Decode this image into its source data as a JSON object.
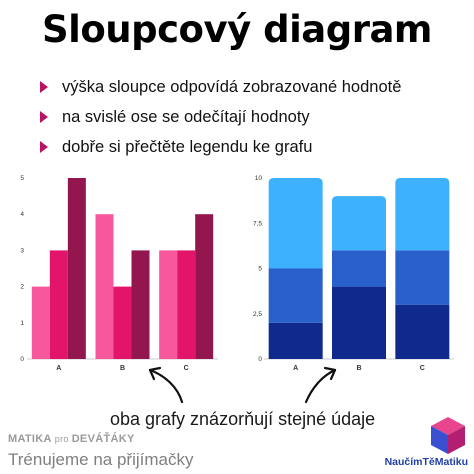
{
  "title": "Sloupcový diagram",
  "bullets": [
    "výška sloupce odpovídá zobrazované hodnotě",
    "na svislé ose se odečítají hodnoty",
    "dobře si přečtěte legendu ke grafu"
  ],
  "caption": "oba grafy znázorňují stejné údaje",
  "brand": {
    "left_top_main": "MATIKA",
    "left_top_pro": "pro",
    "left_top_end": "DEVÁŤÁKY",
    "left_bottom": "Trénujeme na přijímačky",
    "logo_text": "NaučímTěMatiku"
  },
  "icons": [
    "bullet-triangle-icon",
    "arrow-icon",
    "cube-logo-icon"
  ],
  "colors": {
    "accent": "#b8145f",
    "grouped_series": [
      "#f7579b",
      "#e2156a",
      "#93164f"
    ],
    "stacked_series": [
      "#0f2a8c",
      "#2960cc",
      "#3db1fb"
    ]
  },
  "chart_data": [
    {
      "type": "bar",
      "categories": [
        "A",
        "B",
        "C"
      ],
      "series": [
        {
          "values": [
            2,
            4,
            3
          ]
        },
        {
          "values": [
            3,
            2,
            3
          ]
        },
        {
          "values": [
            5,
            3,
            4
          ]
        }
      ],
      "yticks": [
        "0",
        "1",
        "2",
        "3",
        "4",
        "5"
      ],
      "ylim": [
        0,
        5
      ],
      "grid": false
    },
    {
      "type": "bar",
      "stacked": true,
      "categories": [
        "A",
        "B",
        "C"
      ],
      "series": [
        {
          "values": [
            2,
            4,
            3
          ]
        },
        {
          "values": [
            3,
            2,
            3
          ]
        },
        {
          "values": [
            5,
            3,
            4
          ]
        }
      ],
      "yticks": [
        "0",
        "2,5",
        "5",
        "7,5",
        "10"
      ],
      "ylim": [
        0,
        10
      ],
      "grid": false
    }
  ]
}
